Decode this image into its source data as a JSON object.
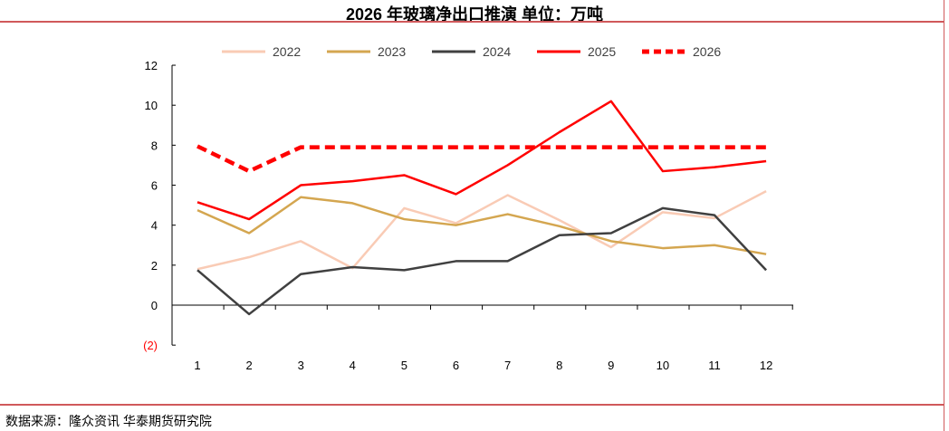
{
  "title": "2026 年玻璃净出口推演    单位：万吨",
  "source": "数据来源：隆众资讯  华泰期货研究院",
  "chart_data": {
    "type": "line",
    "title": "2026 年玻璃净出口推演    单位：万吨",
    "x": [
      1,
      2,
      3,
      4,
      5,
      6,
      7,
      8,
      9,
      10,
      11,
      12
    ],
    "xtick_labels": [
      "1",
      "2",
      "3",
      "4",
      "5",
      "6",
      "7",
      "8",
      "9",
      "10",
      "11",
      "12"
    ],
    "ytick_labels": [
      "12",
      "10",
      "8",
      "6",
      "4",
      "2",
      "0",
      "(2)"
    ],
    "yticks": [
      12,
      10,
      8,
      6,
      4,
      2,
      0,
      -2
    ],
    "ylim": [
      -2,
      12
    ],
    "grid": false,
    "legend": "top",
    "series": [
      {
        "name": "2022",
        "color": "#f9cbb5",
        "dashed": false,
        "values": [
          1.8,
          2.4,
          3.2,
          1.85,
          4.85,
          4.1,
          5.5,
          4.25,
          2.9,
          4.65,
          4.35,
          5.7
        ]
      },
      {
        "name": "2023",
        "color": "#d4a650",
        "dashed": false,
        "values": [
          4.75,
          3.6,
          5.4,
          5.1,
          4.3,
          4.0,
          4.55,
          3.95,
          3.2,
          2.85,
          3.0,
          2.55
        ]
      },
      {
        "name": "2024",
        "color": "#404040",
        "dashed": false,
        "values": [
          1.75,
          -0.45,
          1.55,
          1.9,
          1.75,
          2.2,
          2.2,
          3.5,
          3.6,
          4.85,
          4.5,
          1.75
        ]
      },
      {
        "name": "2025",
        "color": "#ff0000",
        "dashed": false,
        "values": [
          5.15,
          4.3,
          6.0,
          6.2,
          6.5,
          5.55,
          7.0,
          8.65,
          10.2,
          6.7,
          6.9,
          7.2
        ]
      },
      {
        "name": "2026",
        "color": "#ff0000",
        "dashed": true,
        "values": [
          7.95,
          6.7,
          7.9,
          7.9,
          7.9,
          7.9,
          7.9,
          7.9,
          7.9,
          7.9,
          7.9,
          7.9
        ]
      }
    ]
  }
}
